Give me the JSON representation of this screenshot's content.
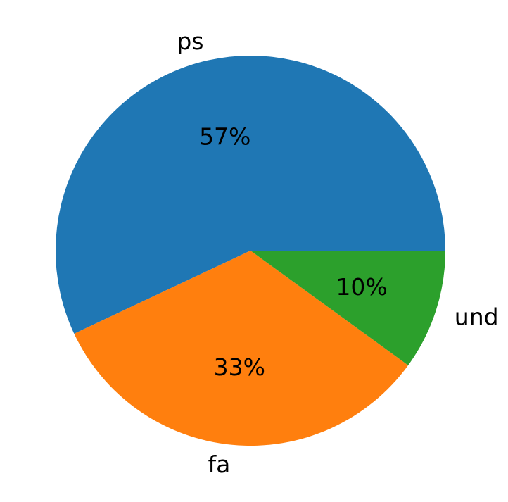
{
  "chart_data": {
    "type": "pie",
    "categories": [
      "ps",
      "fa",
      "und"
    ],
    "values": [
      57,
      33,
      10
    ],
    "value_labels": [
      "57%",
      "33%",
      "10%"
    ],
    "colors": [
      "#1f77b4",
      "#ff7f0e",
      "#2ca02c"
    ]
  }
}
